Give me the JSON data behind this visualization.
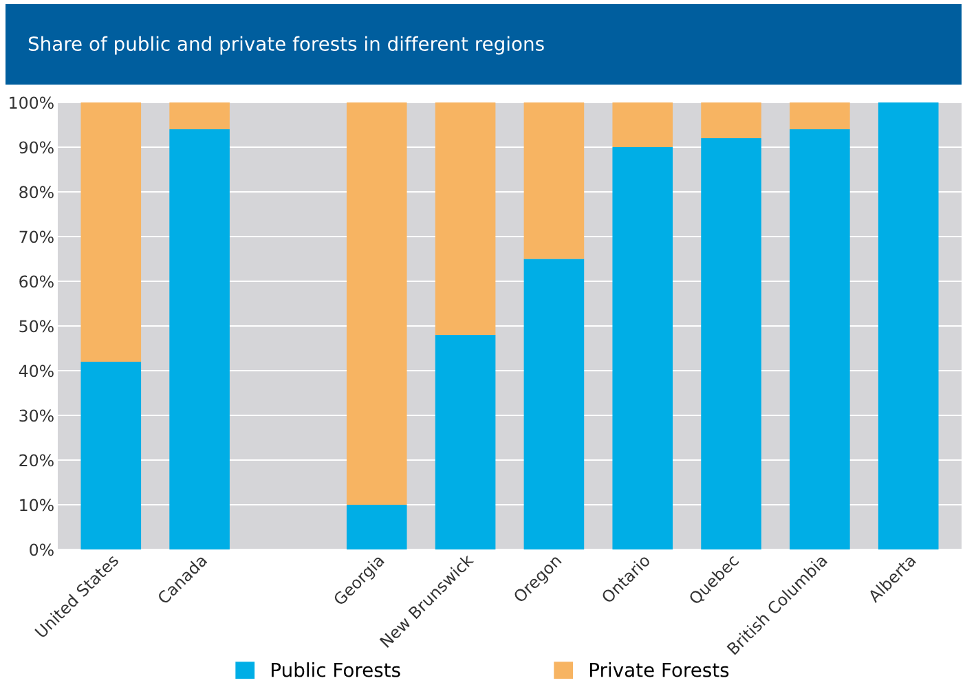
{
  "chart_data": {
    "type": "bar",
    "title": "Share of public and private forests in different regions",
    "categories": [
      "United States",
      "Canada",
      null,
      "Georgia",
      "New Brunswick",
      "Oregon",
      "Ontario",
      "Quebec",
      "British Columbia",
      "Alberta"
    ],
    "series": [
      {
        "name": "Public Forests",
        "color": "#00aee6",
        "values": [
          42,
          94,
          null,
          10,
          48,
          65,
          90,
          92,
          94,
          100
        ]
      },
      {
        "name": "Private Forests",
        "color": "#f7b462",
        "values": [
          58,
          6,
          null,
          90,
          52,
          35,
          10,
          8,
          6,
          0
        ]
      }
    ],
    "stacked": true,
    "ylim": [
      0,
      100
    ],
    "yticks": [
      {
        "value": 0,
        "label": "0%"
      },
      {
        "value": 10,
        "label": "10%"
      },
      {
        "value": 20,
        "label": "20%"
      },
      {
        "value": 30,
        "label": "30%"
      },
      {
        "value": 40,
        "label": "40%"
      },
      {
        "value": 50,
        "label": "50%"
      },
      {
        "value": 60,
        "label": "60%"
      },
      {
        "value": 70,
        "label": "70%"
      },
      {
        "value": 80,
        "label": "80%"
      },
      {
        "value": 90,
        "label": "90%"
      },
      {
        "value": 100,
        "label": "100%"
      }
    ],
    "grid": "y",
    "legend": "bottom"
  }
}
